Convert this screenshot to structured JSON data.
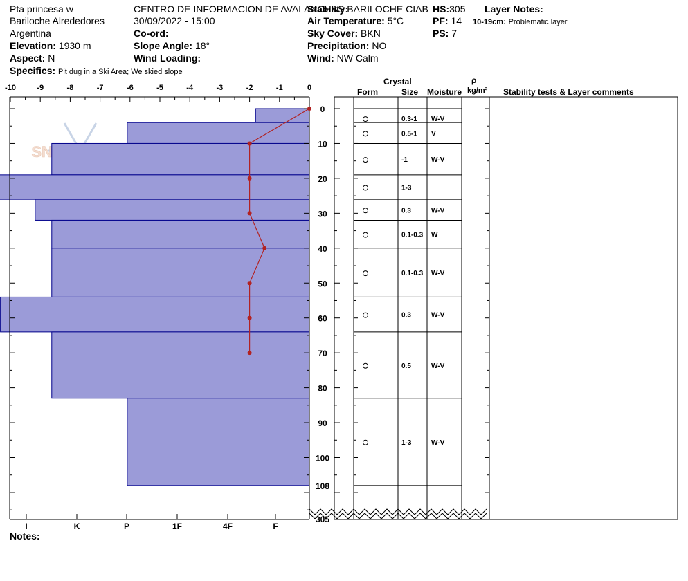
{
  "header": {
    "location_line1": "Pta princesa w",
    "location_line2": "Bariloche Alrededores",
    "location_line3": "Argentina",
    "org": "CENTRO DE INFORMACION DE AVALANCHAS BARILOCHE CIAB",
    "datetime": "30/09/2022 - 15:00",
    "elevation_label": "Elevation:",
    "elevation": "1930 m",
    "aspect_label": "Aspect:",
    "aspect": "N",
    "specifics_label": "Specifics:",
    "specifics": "Pit dug in a Ski Area; We skied slope",
    "coord_label": "Co-ord:",
    "slope_label": "Slope Angle:",
    "slope": "18°",
    "wind_loading_label": "Wind Loading:",
    "stability_label": "Stability:",
    "air_temp_label": "Air Temperature:",
    "air_temp": "5°C",
    "sky_label": "Sky Cover:",
    "sky": "BKN",
    "precip_label": "Precipitation:",
    "precip": "NO",
    "wind_label": "Wind:",
    "wind": "NW Calm",
    "hs_label": "HS:",
    "hs": "305",
    "pf_label": "PF:",
    "pf": "14",
    "ps_label": "PS:",
    "ps": "7",
    "layer_notes_label": "Layer Notes:",
    "layer_note_range": "10-19cm:",
    "layer_note_text": "Problematic layer",
    "notes_label": "Notes:"
  },
  "table_headers": {
    "crystal": "Crystal",
    "form": "Form",
    "size": "Size",
    "moisture": "Moisture",
    "rho": "ρ",
    "density_unit": "kg/m³",
    "stability_comments": "Stability tests & Layer comments"
  },
  "watermark": "SNOW PILOT",
  "chart_data": {
    "type": "bar",
    "temp_axis": {
      "ticks": [
        "-10",
        "-9",
        "-8",
        "-7",
        "-6",
        "-5",
        "-4",
        "-3",
        "-2",
        "-1",
        "0"
      ],
      "range": [
        -10,
        0
      ]
    },
    "depth_axis": {
      "ticks": [
        "0",
        "10",
        "20",
        "30",
        "40",
        "50",
        "60",
        "70",
        "80",
        "90",
        "100",
        "108"
      ],
      "bottom_label": "305",
      "range": [
        0,
        108
      ]
    },
    "hardness_axis": {
      "ticks": [
        "I",
        "K",
        "P",
        "1F",
        "4F",
        "F"
      ]
    },
    "bar_color": "#9b9bd8",
    "bar_edge_color": "#00008b",
    "temp_color": "#b22222",
    "layers": [
      {
        "top": 0,
        "bottom": 4,
        "hardness": 1.07,
        "size": "",
        "moisture": ""
      },
      {
        "top": 4,
        "bottom": 10,
        "hardness": 3.62,
        "size": "0.3-1",
        "moisture": "W-V"
      },
      {
        "top": 10,
        "bottom": 19,
        "hardness": 5.12,
        "size": "0.5-1",
        "moisture": "V"
      },
      {
        "top": 19,
        "bottom": 26,
        "hardness": 7.15,
        "size": "-1",
        "moisture": "W-V"
      },
      {
        "top": 26,
        "bottom": 32,
        "hardness": 5.45,
        "size": "1-3",
        "moisture": ""
      },
      {
        "top": 32,
        "bottom": 40,
        "hardness": 5.12,
        "size": "0.3",
        "moisture": "W-V"
      },
      {
        "top": 40,
        "bottom": 54,
        "hardness": 5.12,
        "size": "0.1-0.3",
        "moisture": "W"
      },
      {
        "top": 54,
        "bottom": 64,
        "hardness": 6.14,
        "size": "0.1-0.3",
        "moisture": "W-V"
      },
      {
        "top": 64,
        "bottom": 83,
        "hardness": 5.12,
        "size": "0.3",
        "moisture": "W-V"
      },
      {
        "top": 83,
        "bottom": 108,
        "hardness": 3.62,
        "size": "0.5",
        "moisture": "W-V"
      }
    ],
    "extra_layer": {
      "size": "1-3",
      "moisture": "W-V"
    },
    "temperature_profile": {
      "depth": [
        0,
        10,
        20,
        30,
        40,
        50,
        60,
        70
      ],
      "temp": [
        0,
        -2,
        -2,
        -2,
        -1.5,
        -2,
        -2,
        -2
      ]
    }
  }
}
